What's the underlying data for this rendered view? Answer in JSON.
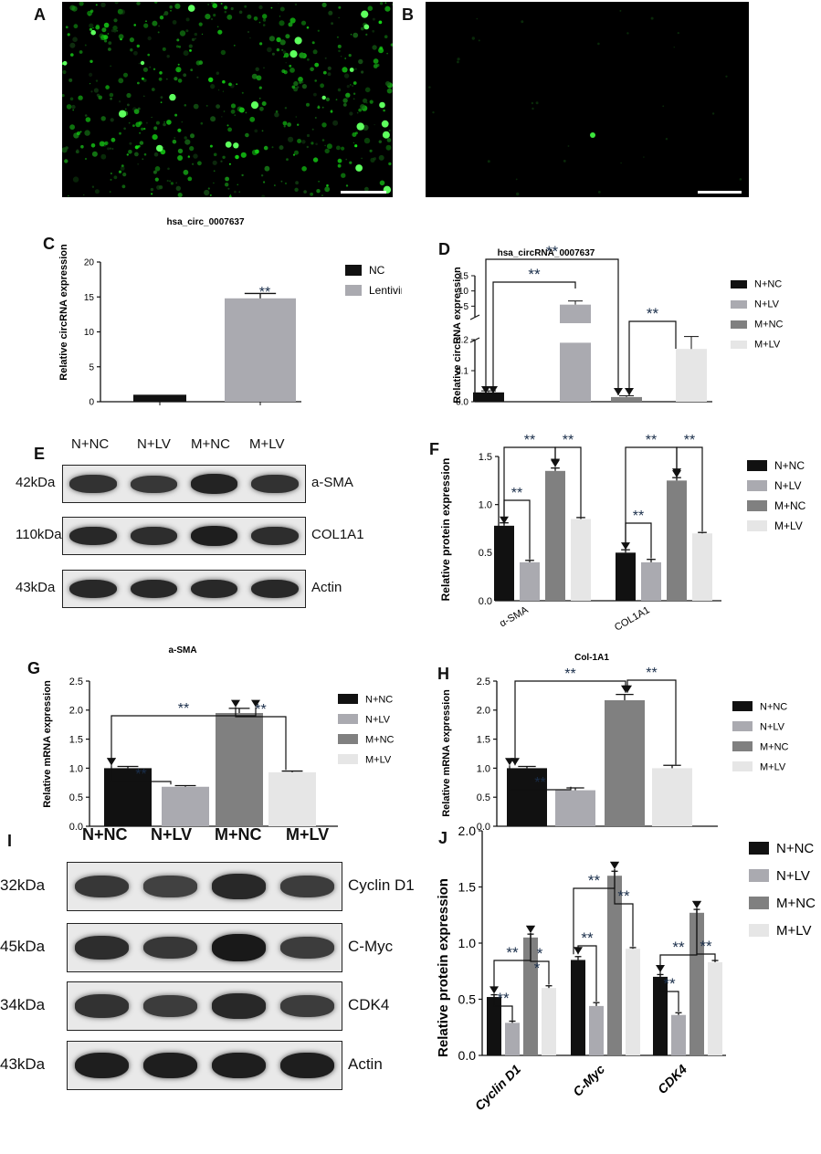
{
  "panels": {
    "A": {
      "label": "A"
    },
    "B": {
      "label": "B"
    },
    "C": {
      "label": "C"
    },
    "D": {
      "label": "D"
    },
    "E": {
      "label": "E"
    },
    "F": {
      "label": "F"
    },
    "G": {
      "label": "G"
    },
    "H": {
      "label": "H"
    },
    "I": {
      "label": "I"
    },
    "J": {
      "label": "J"
    }
  },
  "blot_E": {
    "lanes": [
      "N+NC",
      "N+LV",
      "M+NC",
      "M+LV"
    ],
    "rows": [
      {
        "kda": "42kDa",
        "name": "a-SMA",
        "intensity": [
          0.7,
          0.65,
          0.85,
          0.7
        ]
      },
      {
        "kda": "110kDa",
        "name": "COL1A1",
        "intensity": [
          0.8,
          0.75,
          0.9,
          0.75
        ]
      },
      {
        "kda": "43kDa",
        "name": "Actin",
        "intensity": [
          0.8,
          0.8,
          0.8,
          0.8
        ]
      }
    ]
  },
  "blot_I": {
    "lanes": [
      "N+NC",
      "N+LV",
      "M+NC",
      "M+LV"
    ],
    "rows": [
      {
        "kda": "32kDa",
        "name": "Cyclin D1",
        "intensity": [
          0.65,
          0.55,
          0.8,
          0.6
        ]
      },
      {
        "kda": "45kDa",
        "name": "C-Myc",
        "intensity": [
          0.75,
          0.65,
          0.95,
          0.6
        ]
      },
      {
        "kda": "34kDa",
        "name": "CDK4",
        "intensity": [
          0.7,
          0.6,
          0.8,
          0.6
        ]
      },
      {
        "kda": "43kDa",
        "name": "Actin",
        "intensity": [
          0.9,
          0.9,
          0.9,
          0.9
        ]
      }
    ]
  },
  "chart_data": [
    {
      "id": "C",
      "type": "bar",
      "title": "hsa_circ_0007637",
      "ylabel": "Relative circRNA expression",
      "ylim": [
        0,
        20
      ],
      "yticks": [
        0,
        5,
        10,
        15,
        20
      ],
      "series": [
        {
          "name": "NC",
          "color": "#111111",
          "values": [
            1.0
          ],
          "err": [
            0
          ]
        },
        {
          "name": "Lentivirus",
          "color": "#aaaab0",
          "values": [
            14.8
          ],
          "err": [
            0.7
          ]
        }
      ],
      "significance": [
        "**"
      ]
    },
    {
      "id": "D",
      "type": "bar",
      "title": "hsa_circRNA_0007637",
      "ylabel": "Relative circRNA expression",
      "axis_break": true,
      "lower_ticks": [
        0.0,
        0.1,
        0.2
      ],
      "upper_ticks": [
        5,
        10,
        15
      ],
      "categories": [
        "N+NC",
        "N+LV",
        "M+NC",
        "M+LV"
      ],
      "series": [
        {
          "name": "N+NC",
          "color": "#111111",
          "value": 0.03,
          "err": 0.005
        },
        {
          "name": "N+LV",
          "color": "#aaaab0",
          "value": 5.5,
          "err": 1.2
        },
        {
          "name": "M+NC",
          "color": "#808080",
          "value": 0.015,
          "err": 0.004
        },
        {
          "name": "M+LV",
          "color": "#e6e6e6",
          "value": 0.17,
          "err": 0.04
        }
      ],
      "significance": [
        "**",
        "**",
        "**"
      ]
    },
    {
      "id": "F",
      "type": "bar",
      "ylabel": "Relative protein expression",
      "ylim": [
        0,
        1.5
      ],
      "yticks": [
        0.0,
        0.5,
        1.0,
        1.5
      ],
      "categories": [
        "α-SMA",
        "COL1A1"
      ],
      "series": [
        {
          "name": "N+NC",
          "color": "#111111",
          "values": [
            0.78,
            0.5
          ],
          "err": [
            0.03,
            0.03
          ]
        },
        {
          "name": "N+LV",
          "color": "#aaaab0",
          "values": [
            0.4,
            0.4
          ],
          "err": [
            0.02,
            0.03
          ]
        },
        {
          "name": "M+NC",
          "color": "#808080",
          "values": [
            1.35,
            1.25
          ],
          "err": [
            0.03,
            0.03
          ]
        },
        {
          "name": "M+LV",
          "color": "#e6e6e6",
          "values": [
            0.85,
            0.7
          ],
          "err": [
            0.015,
            0.01
          ]
        }
      ],
      "significance": [
        "**",
        "**",
        "**",
        "**",
        "**",
        "**"
      ]
    },
    {
      "id": "G",
      "type": "bar",
      "title": "a-SMA",
      "ylabel": "Relative mRNA expression",
      "ylim": [
        0,
        2.5
      ],
      "yticks": [
        0.0,
        0.5,
        1.0,
        1.5,
        2.0,
        2.5
      ],
      "categories": [
        "N+NC",
        "N+LV",
        "M+NC",
        "M+LV"
      ],
      "series": [
        {
          "name": "N+NC",
          "color": "#111111",
          "value": 1.0,
          "err": 0.03
        },
        {
          "name": "N+LV",
          "color": "#aaaab0",
          "value": 0.68,
          "err": 0.02
        },
        {
          "name": "M+NC",
          "color": "#808080",
          "value": 1.95,
          "err": 0.08
        },
        {
          "name": "M+LV",
          "color": "#e6e6e6",
          "value": 0.93,
          "err": 0.02
        }
      ],
      "significance": [
        "**",
        "**",
        "**"
      ]
    },
    {
      "id": "H",
      "type": "bar",
      "title": "Col-1A1",
      "ylabel": "Relative mRNA expression",
      "ylim": [
        0,
        2.5
      ],
      "yticks": [
        0.0,
        0.5,
        1.0,
        1.5,
        2.0,
        2.5
      ],
      "categories": [
        "N+NC",
        "N+LV",
        "M+NC",
        "M+LV"
      ],
      "series": [
        {
          "name": "N+NC",
          "color": "#111111",
          "value": 1.0,
          "err": 0.03
        },
        {
          "name": "N+LV",
          "color": "#aaaab0",
          "value": 0.62,
          "err": 0.04
        },
        {
          "name": "M+NC",
          "color": "#808080",
          "value": 2.17,
          "err": 0.1
        },
        {
          "name": "M+LV",
          "color": "#e6e6e6",
          "value": 1.0,
          "err": 0.05
        }
      ],
      "significance": [
        "**",
        "**",
        "**"
      ]
    },
    {
      "id": "J",
      "type": "bar",
      "ylabel": "Relative protein expression",
      "ylim": [
        0,
        2.0
      ],
      "yticks": [
        0.0,
        0.5,
        1.0,
        1.5,
        2.0
      ],
      "categories": [
        "Cyclin D1",
        "C-Myc",
        "CDK4"
      ],
      "series": [
        {
          "name": "N+NC",
          "color": "#111111",
          "values": [
            0.52,
            0.85,
            0.7
          ],
          "err": [
            0.02,
            0.03,
            0.02
          ]
        },
        {
          "name": "N+LV",
          "color": "#aaaab0",
          "values": [
            0.29,
            0.44,
            0.36
          ],
          "err": [
            0.015,
            0.03,
            0.02
          ]
        },
        {
          "name": "M+NC",
          "color": "#808080",
          "values": [
            1.05,
            1.6,
            1.27
          ],
          "err": [
            0.03,
            0.04,
            0.03
          ]
        },
        {
          "name": "M+LV",
          "color": "#e6e6e6",
          "values": [
            0.6,
            0.95,
            0.83
          ],
          "err": [
            0.02,
            0.01,
            0.015
          ]
        }
      ],
      "significance": [
        "**",
        "**",
        "*",
        "*",
        "**",
        "**",
        "**",
        "**",
        "**"
      ]
    }
  ]
}
